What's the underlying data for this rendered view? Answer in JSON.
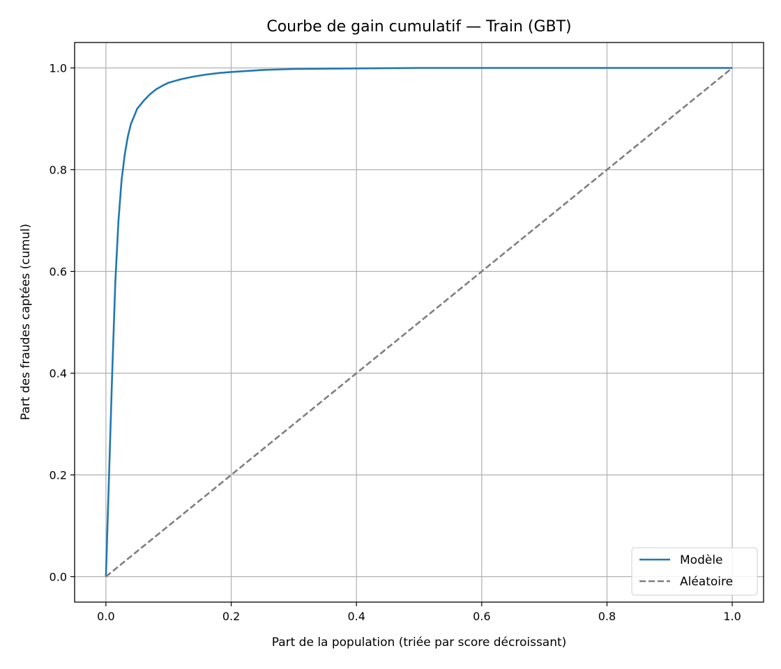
{
  "chart_data": {
    "type": "line",
    "title": "Courbe de gain cumulatif — Train (GBT)",
    "xlabel": "Part de la population (triée par score décroissant)",
    "ylabel": "Part des fraudes captées (cumul)",
    "xlim": [
      -0.05,
      1.05
    ],
    "ylim": [
      -0.05,
      1.05
    ],
    "xticks": [
      "0.0",
      "0.2",
      "0.4",
      "0.6",
      "0.8",
      "1.0"
    ],
    "yticks": [
      "0.0",
      "0.2",
      "0.4",
      "0.6",
      "0.8",
      "1.0"
    ],
    "grid": true,
    "legend_position": "lower-right",
    "series": [
      {
        "name": "Modèle",
        "color": "#1f77b4",
        "style": "solid",
        "x": [
          0.0,
          0.005,
          0.01,
          0.015,
          0.02,
          0.025,
          0.03,
          0.035,
          0.04,
          0.045,
          0.05,
          0.06,
          0.07,
          0.08,
          0.09,
          0.1,
          0.12,
          0.14,
          0.16,
          0.18,
          0.2,
          0.25,
          0.3,
          0.4,
          0.5,
          0.6,
          0.8,
          1.0
        ],
        "y": [
          0.0,
          0.2,
          0.4,
          0.58,
          0.7,
          0.78,
          0.83,
          0.865,
          0.89,
          0.905,
          0.92,
          0.935,
          0.948,
          0.958,
          0.965,
          0.971,
          0.978,
          0.983,
          0.987,
          0.99,
          0.992,
          0.996,
          0.998,
          0.999,
          1.0,
          1.0,
          1.0,
          1.0
        ]
      },
      {
        "name": "Aléatoire",
        "color": "#7f7f7f",
        "style": "dashed",
        "x": [
          0.0,
          1.0
        ],
        "y": [
          0.0,
          1.0
        ]
      }
    ]
  }
}
